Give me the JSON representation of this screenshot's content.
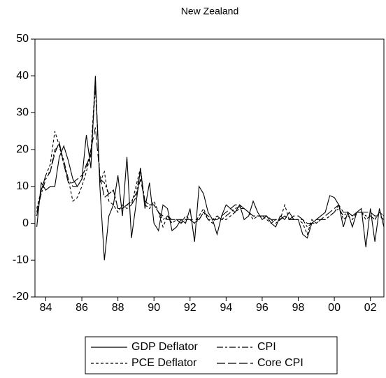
{
  "chart_data": {
    "type": "line",
    "title": "New Zealand",
    "x": [
      1983.5,
      1983.75,
      1984,
      1984.25,
      1984.5,
      1984.75,
      1985,
      1985.25,
      1985.5,
      1985.75,
      1986,
      1986.25,
      1986.5,
      1986.75,
      1987,
      1987.25,
      1987.5,
      1987.75,
      1988,
      1988.25,
      1988.5,
      1988.75,
      1989,
      1989.25,
      1989.5,
      1989.75,
      1990,
      1990.25,
      1990.5,
      1990.75,
      1991,
      1991.25,
      1991.5,
      1991.75,
      1992,
      1992.25,
      1992.5,
      1992.75,
      1993,
      1993.25,
      1993.5,
      1993.75,
      1994,
      1994.25,
      1994.5,
      1994.75,
      1995,
      1995.25,
      1995.5,
      1995.75,
      1996,
      1996.25,
      1996.5,
      1996.75,
      1997,
      1997.25,
      1997.5,
      1997.75,
      1998,
      1998.25,
      1998.5,
      1998.75,
      1999,
      1999.25,
      1999.5,
      1999.75,
      2000,
      2000.25,
      2000.5,
      2000.75,
      2001,
      2001.25,
      2001.5,
      2001.75,
      2002,
      2002.25,
      2002.5,
      2002.75
    ],
    "series": [
      {
        "name": "GDP Deflator",
        "color": "#000000",
        "dash": "solid",
        "values": [
          -1,
          11,
          9,
          10,
          10,
          18,
          21,
          17,
          12,
          10,
          12,
          24,
          15,
          40,
          10,
          -10,
          2,
          5,
          13,
          2,
          18,
          -4,
          5,
          15,
          4,
          11,
          0,
          -2,
          5,
          4,
          -2,
          -1,
          1,
          0,
          4,
          -5,
          10,
          8,
          3,
          1,
          -3,
          2,
          5,
          4,
          3,
          5,
          1,
          2,
          6,
          3,
          1,
          2,
          0,
          -1,
          2,
          1,
          3,
          1,
          1,
          -3,
          -4,
          0,
          1,
          2,
          3,
          7.5,
          7,
          5,
          -1,
          3,
          -1,
          3,
          4,
          -6.5,
          4,
          -5,
          4,
          -1
        ]
      },
      {
        "name": "CPI",
        "color": "#000000",
        "dash": "dashdot",
        "values": [
          3,
          8,
          12,
          14,
          20,
          21,
          17,
          12,
          10,
          10,
          12,
          16,
          18,
          37,
          12,
          11,
          8,
          9,
          4,
          4,
          5,
          6,
          8,
          14,
          6,
          5,
          5,
          3,
          1,
          2,
          1,
          1,
          1,
          1,
          1,
          0,
          1,
          3,
          1,
          1,
          2,
          1,
          2,
          3,
          4,
          4.5,
          4,
          3,
          2,
          2,
          2,
          2,
          1,
          0,
          1,
          2,
          1,
          1,
          1,
          1,
          -1,
          0,
          0,
          1,
          1,
          2,
          3,
          4,
          2,
          3,
          2,
          3,
          3,
          2,
          2,
          1,
          3,
          2
        ]
      },
      {
        "name": "PCE Deflator",
        "color": "#000000",
        "dash": "dashed",
        "values": [
          4,
          9,
          13,
          16,
          25,
          21,
          16,
          12,
          6,
          7,
          10,
          14,
          19,
          39,
          11,
          14,
          6,
          5,
          3,
          5,
          4,
          5,
          10,
          15,
          5,
          4,
          6,
          3,
          -1,
          2,
          0,
          1,
          0,
          2,
          1,
          0,
          2,
          4,
          1,
          0,
          2,
          1,
          1,
          2,
          3,
          4,
          4,
          3,
          1,
          2,
          2,
          1,
          0,
          1,
          1,
          5,
          1,
          1,
          1,
          0,
          -3,
          1,
          0,
          1,
          1,
          2,
          3,
          5,
          1,
          2,
          1,
          3,
          3,
          1,
          2,
          1,
          3,
          2
        ]
      },
      {
        "name": "Core CPI",
        "color": "#000000",
        "dash": "longdash",
        "values": [
          2,
          9,
          13,
          14,
          19,
          22,
          16,
          11,
          11,
          12,
          13,
          15,
          20,
          26,
          13,
          7,
          8,
          9,
          4,
          4,
          5,
          5,
          7,
          12,
          6,
          5,
          5,
          3,
          2,
          1,
          1,
          1,
          0,
          1,
          1,
          1,
          1,
          3,
          2,
          1,
          1,
          2,
          3,
          4,
          5,
          5,
          4,
          3,
          2,
          2,
          2,
          2,
          1,
          1,
          1,
          2,
          1,
          2,
          2,
          1,
          0,
          0,
          1,
          1,
          2,
          3,
          4,
          5,
          3,
          3,
          2,
          3,
          3,
          3,
          3,
          2,
          2,
          1
        ]
      }
    ],
    "xlim": [
      1983.4,
      2002.75
    ],
    "xticks": [
      {
        "value": 1984,
        "label": "84"
      },
      {
        "value": 1986,
        "label": "86"
      },
      {
        "value": 1988,
        "label": "88"
      },
      {
        "value": 1990,
        "label": "90"
      },
      {
        "value": 1992,
        "label": "92"
      },
      {
        "value": 1994,
        "label": "94"
      },
      {
        "value": 1996,
        "label": "96"
      },
      {
        "value": 1998,
        "label": "98"
      },
      {
        "value": 2000,
        "label": "00"
      },
      {
        "value": 2002,
        "label": "02"
      }
    ],
    "ylim": [
      -20,
      50
    ],
    "yticks": [
      -20,
      -10,
      0,
      10,
      20,
      30,
      40,
      50
    ]
  }
}
